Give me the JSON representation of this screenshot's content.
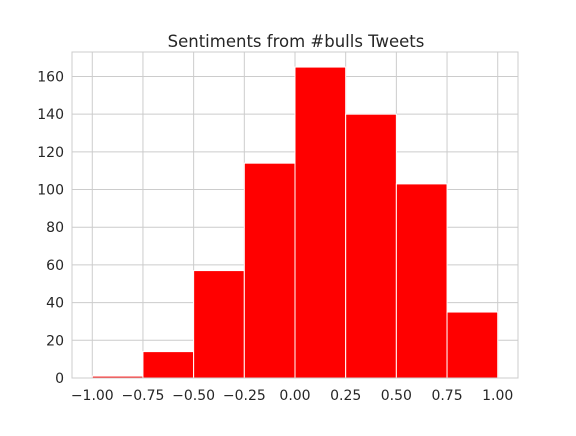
{
  "chart_data": {
    "type": "bar",
    "title": "Sentiments from #bulls Tweets",
    "xlabel": "",
    "ylabel": "",
    "bins": [
      {
        "x0": -1.0,
        "x1": -0.75,
        "count": 1
      },
      {
        "x0": -0.75,
        "x1": -0.5,
        "count": 14
      },
      {
        "x0": -0.5,
        "x1": -0.25,
        "count": 57
      },
      {
        "x0": -0.25,
        "x1": 0.0,
        "count": 114
      },
      {
        "x0": 0.0,
        "x1": 0.25,
        "count": 165
      },
      {
        "x0": 0.25,
        "x1": 0.5,
        "count": 140
      },
      {
        "x0": 0.5,
        "x1": 0.75,
        "count": 103
      },
      {
        "x0": 0.75,
        "x1": 1.0,
        "count": 35
      }
    ],
    "xlim": [
      -1.1,
      1.1
    ],
    "ylim": [
      0,
      173
    ],
    "xticks": [
      -1.0,
      -0.75,
      -0.5,
      -0.25,
      0.0,
      0.25,
      0.5,
      0.75,
      1.0
    ],
    "xtick_labels": [
      "−1.00",
      "−0.75",
      "−0.50",
      "−0.25",
      "0.00",
      "0.25",
      "0.50",
      "0.75",
      "1.00"
    ],
    "yticks": [
      0,
      20,
      40,
      60,
      80,
      100,
      120,
      140,
      160
    ],
    "ytick_labels": [
      "0",
      "20",
      "40",
      "60",
      "80",
      "100",
      "120",
      "140",
      "160"
    ],
    "grid": true,
    "colors": {
      "bar": "#ff0000",
      "bar_edge": "#ffffff",
      "grid": "#cccccc",
      "spine": "#cccccc",
      "text": "#262626"
    }
  }
}
